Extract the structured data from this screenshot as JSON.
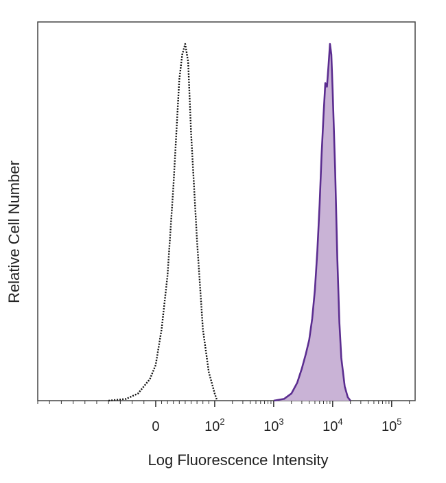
{
  "chart_data": {
    "type": "area",
    "title": "",
    "xlabel": "Log Fluorescence Intensity",
    "ylabel": "Relative Cell Number",
    "x_scale": "biexponential",
    "xlim": [
      -200,
      250000
    ],
    "ylim": [
      0,
      100
    ],
    "grid": false,
    "x_ticks": [
      {
        "value": 0,
        "base": "0",
        "exp": ""
      },
      {
        "value": 100,
        "base": "10",
        "exp": "2"
      },
      {
        "value": 1000,
        "base": "10",
        "exp": "3"
      },
      {
        "value": 10000,
        "base": "10",
        "exp": "4"
      },
      {
        "value": 100000,
        "base": "10",
        "exp": "5"
      }
    ],
    "series": [
      {
        "style": "dotted-outline",
        "color": "#111111",
        "x": [
          -80,
          -50,
          -30,
          -10,
          0,
          10,
          20,
          30,
          35,
          40,
          45,
          50,
          55,
          60,
          70,
          80,
          90,
          100,
          110
        ],
        "y": [
          0,
          0.5,
          2,
          6,
          10,
          20,
          35,
          60,
          75,
          90,
          97,
          100,
          95,
          75,
          45,
          20,
          8,
          2,
          0
        ]
      },
      {
        "style": "filled",
        "color": "#5b2d90",
        "fill": "#c9b3d6",
        "x": [
          1000,
          1500,
          2000,
          2500,
          3000,
          3500,
          4000,
          4500,
          5000,
          5500,
          6000,
          6500,
          7000,
          7500,
          8000,
          8500,
          9000,
          9500,
          10000,
          11000,
          12000,
          13000,
          14000,
          16000,
          18000,
          20000
        ],
        "y": [
          0,
          0.5,
          2,
          5,
          9,
          13,
          17,
          23,
          31,
          42,
          55,
          69,
          80,
          89,
          88,
          94,
          100,
          97,
          87,
          65,
          40,
          22,
          12,
          4,
          1,
          0
        ]
      }
    ]
  }
}
